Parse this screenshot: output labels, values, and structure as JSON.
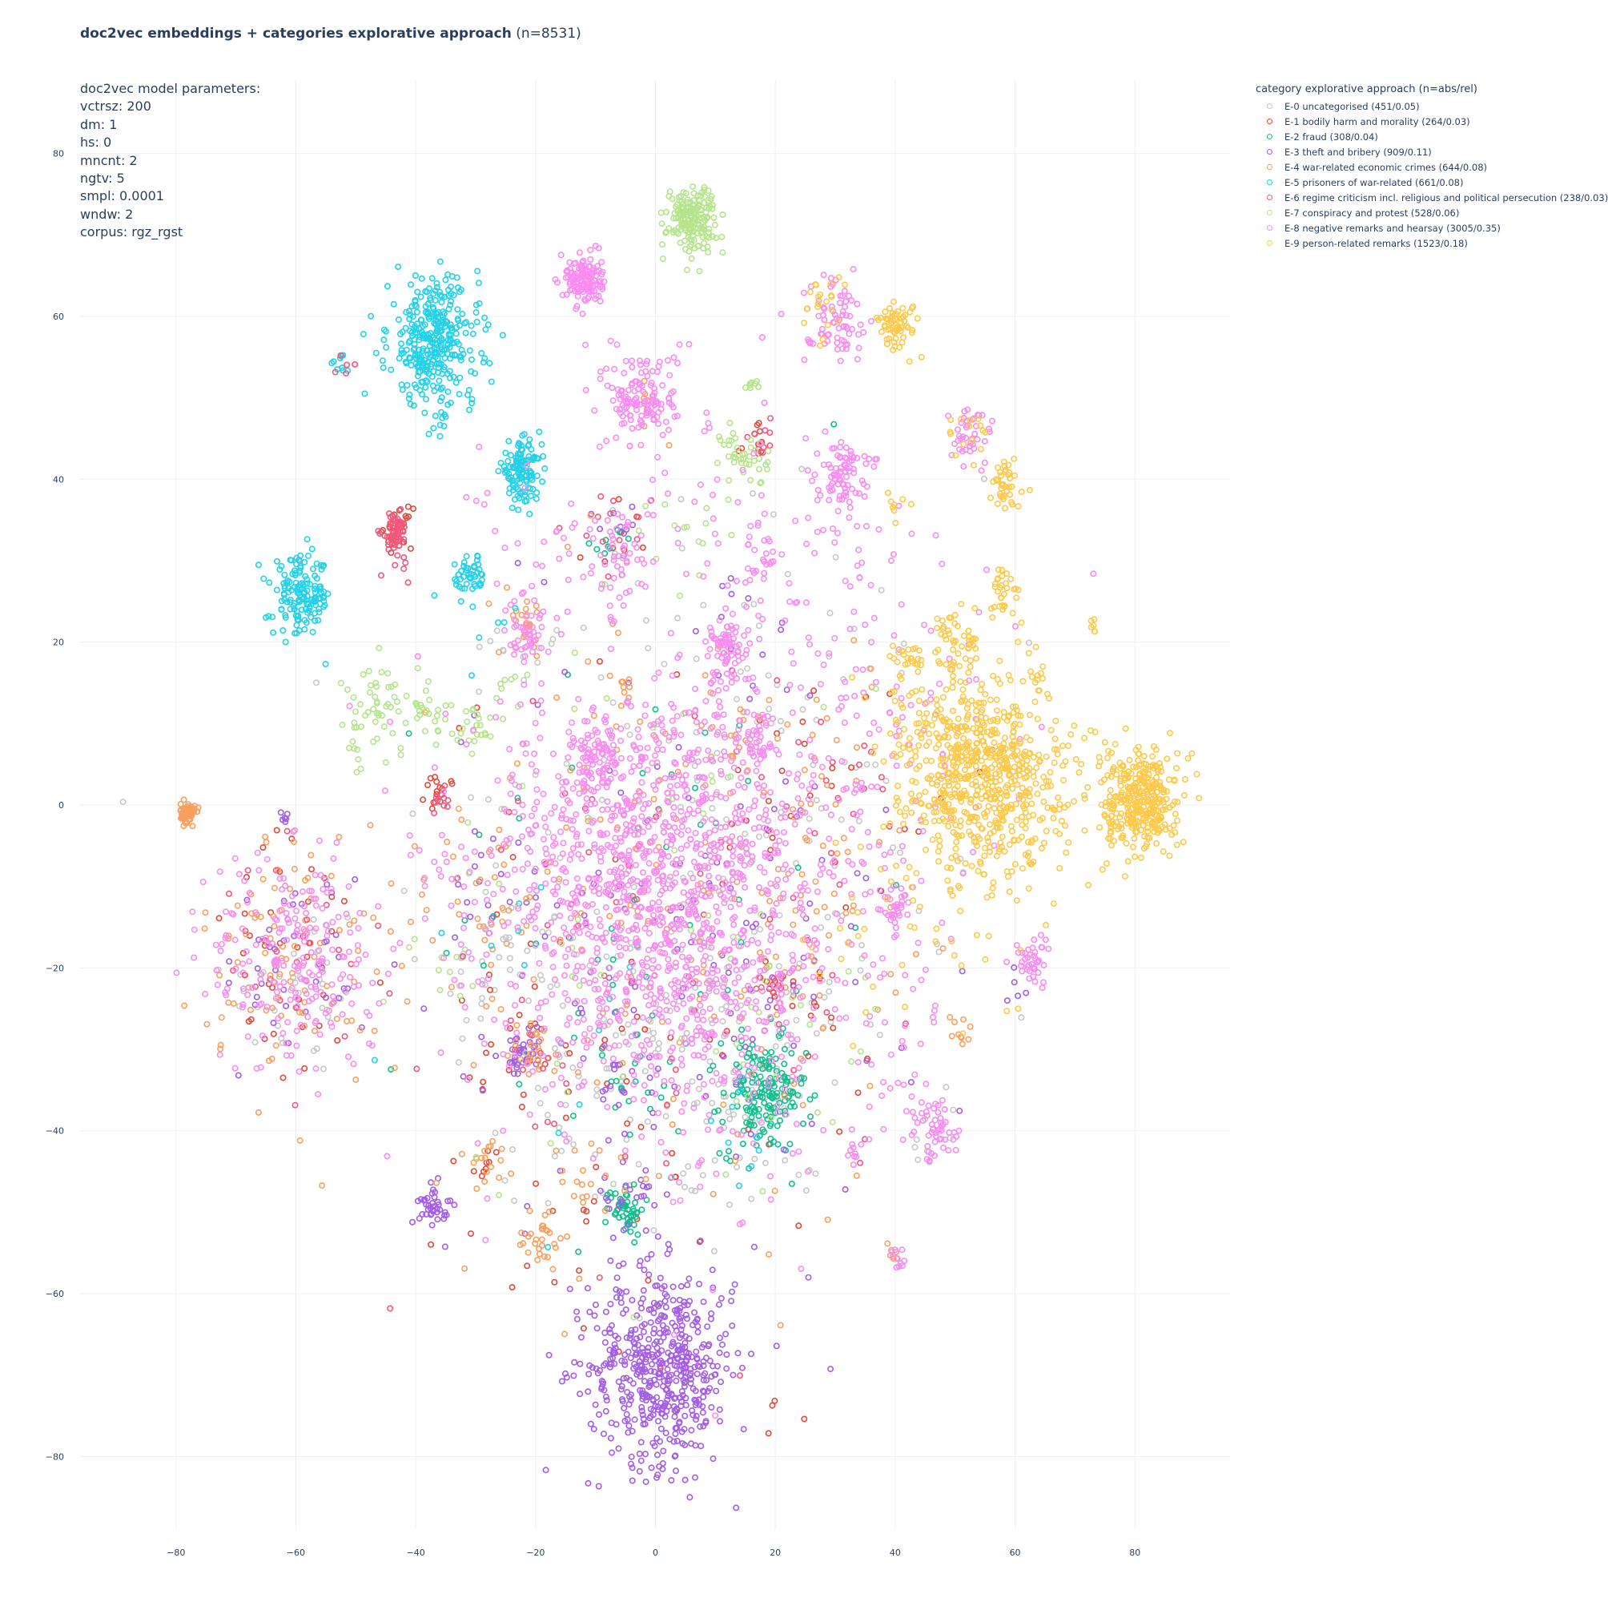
{
  "chart_data": {
    "type": "scatter",
    "title": "doc2vec embeddings + categories explorative approach",
    "title_suffix": "(n=8531)",
    "xlim": [
      -96,
      96
    ],
    "ylim": [
      -89,
      89
    ],
    "x_ticks": [
      -80,
      -60,
      -40,
      -20,
      0,
      20,
      40,
      60,
      80
    ],
    "y_ticks": [
      -80,
      -60,
      -40,
      -20,
      0,
      20,
      40,
      60,
      80
    ],
    "x_tick_labels": [
      "−80",
      "−60",
      "−40",
      "−20",
      "0",
      "20",
      "40",
      "60",
      "80"
    ],
    "y_tick_labels": [
      "−80",
      "−60",
      "−40",
      "−20",
      "0",
      "20",
      "40",
      "60",
      "80"
    ],
    "grid": true,
    "legend_placement": "top-right, outside plot",
    "legend_title": "category explorative approach (n=abs/rel)",
    "annotation_lines": [
      "doc2vec model parameters:",
      "vctrsz: 200",
      "dm: 1",
      "hs: 0",
      "mncnt: 2",
      "ngtv: 5",
      "smpl: 0.0001",
      "wndw: 2",
      "corpus: rgz_rgst"
    ],
    "series": [
      {
        "name": "E-0 uncategorised (451/0.05)",
        "color": "#c8c8c8",
        "count": 451,
        "clusters": [
          [
            0,
            -10,
            22,
            120
          ],
          [
            -60,
            -22,
            6,
            40
          ],
          [
            16,
            -38,
            4,
            30
          ],
          [
            -25,
            -20,
            5,
            30
          ],
          [
            12,
            -25,
            10,
            60
          ],
          [
            -20,
            20,
            3,
            10
          ],
          [
            20,
            5,
            18,
            80
          ],
          [
            -10,
            -40,
            8,
            40
          ],
          [
            45,
            -40,
            3,
            8
          ],
          [
            26,
            -45,
            1,
            4
          ]
        ]
      },
      {
        "name": "E-1 bodily harm and morality (264/0.03)",
        "color": "#e04a3a",
        "count": 264,
        "clusters": [
          [
            -43,
            34,
            1.2,
            22
          ],
          [
            -36,
            1.5,
            1.2,
            14
          ],
          [
            -60,
            -20,
            8,
            40
          ],
          [
            -20,
            -30,
            6,
            15
          ],
          [
            17,
            45,
            1.5,
            10
          ],
          [
            0,
            -20,
            18,
            60
          ],
          [
            25,
            -25,
            3,
            10
          ],
          [
            20,
            -22,
            1,
            8
          ],
          [
            -28,
            -44,
            1,
            8
          ],
          [
            30,
            5,
            8,
            20
          ],
          [
            -5,
            33,
            3,
            10
          ],
          [
            19,
            -75,
            2,
            4
          ],
          [
            -10,
            -50,
            10,
            20
          ]
        ]
      },
      {
        "name": "E-2 fraud (308/0.04)",
        "color": "#10c08d",
        "count": 308,
        "clusters": [
          [
            18,
            -36,
            3.5,
            170
          ],
          [
            -5,
            -49.5,
            1.6,
            50
          ],
          [
            -8,
            33,
            2,
            10
          ],
          [
            0,
            -15,
            18,
            60
          ],
          [
            -3,
            -34,
            2,
            8
          ],
          [
            -12,
            -25,
            5,
            10
          ]
        ]
      },
      {
        "name": "E-3 theft and bribery (909/0.11)",
        "color": "#a45ee5",
        "count": 909,
        "clusters": [
          [
            1,
            -69,
            6,
            520
          ],
          [
            -37,
            -49,
            1.2,
            40
          ],
          [
            -22,
            -31,
            1.5,
            40
          ],
          [
            -4,
            -48,
            3,
            25
          ],
          [
            -60,
            -20,
            6,
            40
          ],
          [
            0,
            -20,
            20,
            120
          ],
          [
            15,
            20,
            4,
            12
          ],
          [
            -62,
            -1.5,
            0.4,
            6
          ],
          [
            -8,
            -33,
            2,
            12
          ],
          [
            15,
            -10,
            8,
            30
          ],
          [
            -7,
            35,
            2,
            8
          ],
          [
            60,
            -23,
            2,
            5
          ],
          [
            -28,
            -10,
            5,
            15
          ]
        ]
      },
      {
        "name": "E-4 war-related economic crimes (644/0.08)",
        "color": "#f9a05f",
        "count": 644,
        "clusters": [
          [
            -78,
            -1,
            0.6,
            90
          ],
          [
            -60,
            -18,
            8,
            90
          ],
          [
            -2,
            -12,
            20,
            150
          ],
          [
            -20,
            -30,
            2,
            25
          ],
          [
            -19,
            -53,
            2,
            30
          ],
          [
            -28,
            -44,
            1.5,
            15
          ],
          [
            -22,
            22,
            2,
            20
          ],
          [
            16,
            9,
            2,
            10
          ],
          [
            -30,
            -10,
            6,
            30
          ],
          [
            20,
            -15,
            10,
            40
          ],
          [
            40,
            -55,
            1,
            6
          ],
          [
            -12,
            -47,
            3,
            15
          ],
          [
            50,
            -28,
            1.5,
            10
          ],
          [
            -1,
            49,
            3,
            10
          ],
          [
            -5,
            14,
            1,
            8
          ],
          [
            30,
            0,
            10,
            30
          ]
        ]
      },
      {
        "name": "E-5 prisoners of war-related (661/0.08)",
        "color": "#23d1e8",
        "count": 661,
        "clusters": [
          [
            -37,
            57,
            3.8,
            330
          ],
          [
            -22.5,
            41,
            1.7,
            120
          ],
          [
            -59,
            25.5,
            2.4,
            150
          ],
          [
            -31,
            28,
            1.4,
            45
          ],
          [
            -52,
            54.5,
            1,
            10
          ],
          [
            -36,
            47,
            1,
            8
          ],
          [
            -31,
            49.5,
            0.6,
            5
          ],
          [
            15,
            -40,
            4,
            10
          ],
          [
            -28,
            22,
            3,
            6
          ],
          [
            -20,
            -20,
            10,
            15
          ]
        ]
      },
      {
        "name": "E-6 regime criticism incl. religious and political persecution (238/0.03)",
        "color": "#f2587d",
        "count": 238,
        "clusters": [
          [
            -43.5,
            33.5,
            1.1,
            60
          ],
          [
            -36,
            1,
            1.3,
            10
          ],
          [
            -60,
            -20,
            6,
            20
          ],
          [
            18,
            45,
            1,
            10
          ],
          [
            0,
            -20,
            18,
            50
          ],
          [
            -52,
            54,
            1,
            5
          ],
          [
            33,
            3,
            4,
            15
          ],
          [
            -43,
            29,
            1,
            6
          ],
          [
            -20,
            -32,
            3,
            10
          ],
          [
            20,
            -22,
            3,
            10
          ],
          [
            -8,
            35,
            3,
            10
          ]
        ]
      },
      {
        "name": "E-7 conspiracy and protest (528/0.06)",
        "color": "#b5e48c",
        "count": 528,
        "clusters": [
          [
            6,
            72,
            2,
            180
          ],
          [
            -46,
            12,
            3,
            50
          ],
          [
            -38,
            11,
            2,
            25
          ],
          [
            -30,
            9,
            1.5,
            20
          ],
          [
            15,
            43,
            2,
            40
          ],
          [
            16,
            51.5,
            0.6,
            8
          ],
          [
            6,
            33,
            4,
            15
          ],
          [
            0,
            -15,
            18,
            60
          ],
          [
            -25,
            14,
            2,
            10
          ],
          [
            20,
            -30,
            8,
            20
          ],
          [
            -50,
            6,
            1,
            5
          ],
          [
            -35,
            -20,
            3,
            10
          ]
        ]
      },
      {
        "name": "E-8 negative remarks and hearsay (3005/0.35)",
        "color": "#f98cf0",
        "count": 3005,
        "clusters": [
          [
            0,
            -10,
            12,
            900
          ],
          [
            -12,
            64.5,
            1.5,
            140
          ],
          [
            -2,
            50,
            3,
            140
          ],
          [
            -60,
            -19,
            7,
            220
          ],
          [
            31,
            41,
            2,
            80
          ],
          [
            30,
            60,
            2.5,
            70
          ],
          [
            -21,
            21,
            2,
            40
          ],
          [
            -10,
            6,
            2,
            70
          ],
          [
            12,
            19,
            2,
            70
          ],
          [
            16,
            8,
            2,
            40
          ],
          [
            -6,
            31,
            3,
            50
          ],
          [
            19,
            30,
            3,
            30
          ],
          [
            52,
            45.5,
            2,
            40
          ],
          [
            63,
            -19,
            1.5,
            40
          ],
          [
            40,
            -13,
            1.5,
            30
          ],
          [
            47,
            -40,
            2,
            50
          ],
          [
            10,
            -30,
            8,
            100
          ],
          [
            25,
            -10,
            15,
            200
          ],
          [
            -15,
            -15,
            15,
            150
          ],
          [
            35,
            20,
            12,
            100
          ],
          [
            20,
            -5,
            10,
            80
          ],
          [
            -12,
            0,
            10,
            80
          ],
          [
            8,
            35,
            8,
            40
          ],
          [
            40,
            -35,
            4,
            20
          ],
          [
            34,
            -43,
            1,
            10
          ],
          [
            -20,
            30,
            6,
            30
          ],
          [
            15,
            -70,
            10,
            5
          ],
          [
            40,
            -56,
            1,
            10
          ]
        ]
      },
      {
        "name": "E-9 person-related remarks (1523/0.18)",
        "color": "#fdc94a",
        "count": 1523,
        "clusters": [
          [
            81,
            0.5,
            3,
            330
          ],
          [
            56,
            5,
            5.5,
            450
          ],
          [
            40.5,
            59,
            1.6,
            60
          ],
          [
            58.5,
            39,
            1.5,
            40
          ],
          [
            58,
            26,
            1.5,
            30
          ],
          [
            50.5,
            21,
            2,
            40
          ],
          [
            42,
            18,
            1.5,
            20
          ],
          [
            29,
            61,
            2,
            20
          ],
          [
            52,
            -5,
            8,
            120
          ],
          [
            46,
            10,
            5,
            100
          ],
          [
            48,
            0,
            2,
            30
          ],
          [
            64,
            15,
            1,
            10
          ],
          [
            73,
            22.5,
            0.5,
            6
          ],
          [
            52,
            45,
            2,
            15
          ],
          [
            40,
            37,
            1,
            8
          ],
          [
            62,
            -3,
            4,
            40
          ],
          [
            70,
            5,
            3,
            20
          ],
          [
            35,
            -20,
            6,
            15
          ]
        ]
      }
    ]
  }
}
